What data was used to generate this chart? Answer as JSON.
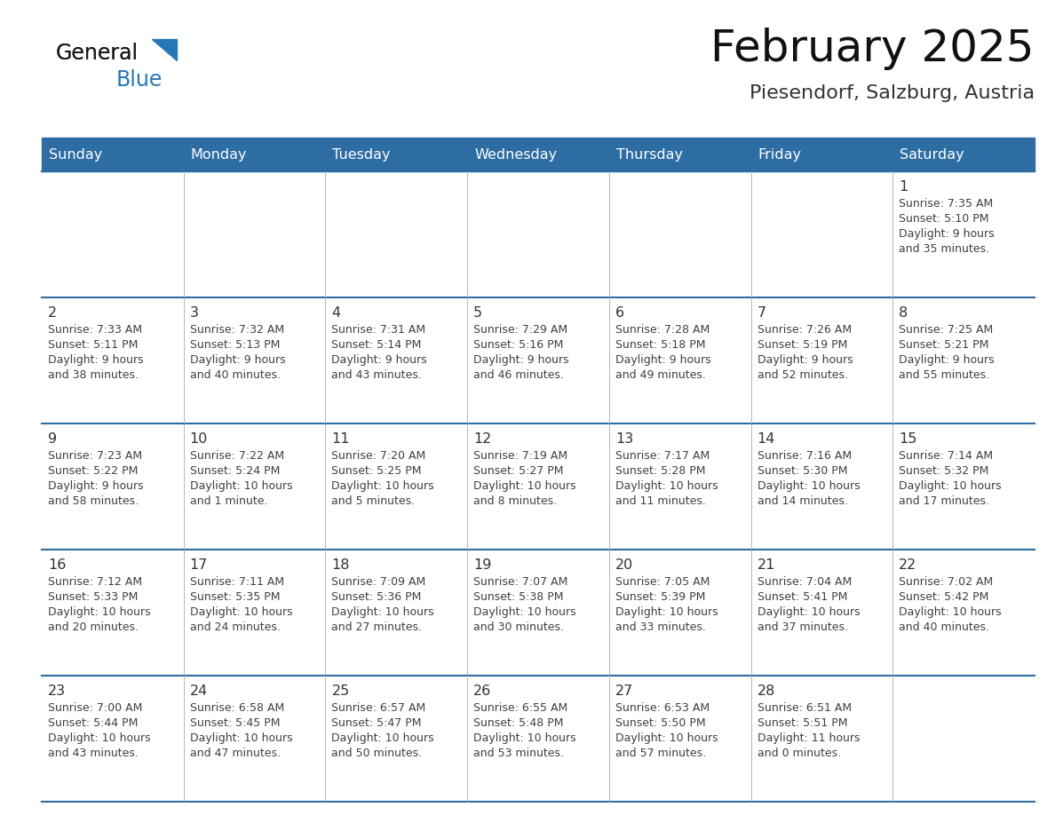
{
  "title": "February 2025",
  "subtitle": "Piesendorf, Salzburg, Austria",
  "days_of_week": [
    "Sunday",
    "Monday",
    "Tuesday",
    "Wednesday",
    "Thursday",
    "Friday",
    "Saturday"
  ],
  "header_bg": "#2E6DA4",
  "header_text": "#FFFFFF",
  "cell_bg": "#FFFFFF",
  "row_alt_bg": "#F2F2F2",
  "border_color": "#2E6DA4",
  "text_color": "#404040",
  "day_num_color": "#333333",
  "title_color": "#111111",
  "subtitle_color": "#333333",
  "logo_color_general": "#1a1a1a",
  "logo_color_blue": "#2777B8",
  "calendar_data": [
    [
      null,
      null,
      null,
      null,
      null,
      null,
      {
        "day": "1",
        "sunrise": "7:35 AM",
        "sunset": "5:10 PM",
        "daylight": "9 hours",
        "daylight2": "and 35 minutes."
      }
    ],
    [
      {
        "day": "2",
        "sunrise": "7:33 AM",
        "sunset": "5:11 PM",
        "daylight": "9 hours",
        "daylight2": "and 38 minutes."
      },
      {
        "day": "3",
        "sunrise": "7:32 AM",
        "sunset": "5:13 PM",
        "daylight": "9 hours",
        "daylight2": "and 40 minutes."
      },
      {
        "day": "4",
        "sunrise": "7:31 AM",
        "sunset": "5:14 PM",
        "daylight": "9 hours",
        "daylight2": "and 43 minutes."
      },
      {
        "day": "5",
        "sunrise": "7:29 AM",
        "sunset": "5:16 PM",
        "daylight": "9 hours",
        "daylight2": "and 46 minutes."
      },
      {
        "day": "6",
        "sunrise": "7:28 AM",
        "sunset": "5:18 PM",
        "daylight": "9 hours",
        "daylight2": "and 49 minutes."
      },
      {
        "day": "7",
        "sunrise": "7:26 AM",
        "sunset": "5:19 PM",
        "daylight": "9 hours",
        "daylight2": "and 52 minutes."
      },
      {
        "day": "8",
        "sunrise": "7:25 AM",
        "sunset": "5:21 PM",
        "daylight": "9 hours",
        "daylight2": "and 55 minutes."
      }
    ],
    [
      {
        "day": "9",
        "sunrise": "7:23 AM",
        "sunset": "5:22 PM",
        "daylight": "9 hours",
        "daylight2": "and 58 minutes."
      },
      {
        "day": "10",
        "sunrise": "7:22 AM",
        "sunset": "5:24 PM",
        "daylight": "10 hours",
        "daylight2": "and 1 minute."
      },
      {
        "day": "11",
        "sunrise": "7:20 AM",
        "sunset": "5:25 PM",
        "daylight": "10 hours",
        "daylight2": "and 5 minutes."
      },
      {
        "day": "12",
        "sunrise": "7:19 AM",
        "sunset": "5:27 PM",
        "daylight": "10 hours",
        "daylight2": "and 8 minutes."
      },
      {
        "day": "13",
        "sunrise": "7:17 AM",
        "sunset": "5:28 PM",
        "daylight": "10 hours",
        "daylight2": "and 11 minutes."
      },
      {
        "day": "14",
        "sunrise": "7:16 AM",
        "sunset": "5:30 PM",
        "daylight": "10 hours",
        "daylight2": "and 14 minutes."
      },
      {
        "day": "15",
        "sunrise": "7:14 AM",
        "sunset": "5:32 PM",
        "daylight": "10 hours",
        "daylight2": "and 17 minutes."
      }
    ],
    [
      {
        "day": "16",
        "sunrise": "7:12 AM",
        "sunset": "5:33 PM",
        "daylight": "10 hours",
        "daylight2": "and 20 minutes."
      },
      {
        "day": "17",
        "sunrise": "7:11 AM",
        "sunset": "5:35 PM",
        "daylight": "10 hours",
        "daylight2": "and 24 minutes."
      },
      {
        "day": "18",
        "sunrise": "7:09 AM",
        "sunset": "5:36 PM",
        "daylight": "10 hours",
        "daylight2": "and 27 minutes."
      },
      {
        "day": "19",
        "sunrise": "7:07 AM",
        "sunset": "5:38 PM",
        "daylight": "10 hours",
        "daylight2": "and 30 minutes."
      },
      {
        "day": "20",
        "sunrise": "7:05 AM",
        "sunset": "5:39 PM",
        "daylight": "10 hours",
        "daylight2": "and 33 minutes."
      },
      {
        "day": "21",
        "sunrise": "7:04 AM",
        "sunset": "5:41 PM",
        "daylight": "10 hours",
        "daylight2": "and 37 minutes."
      },
      {
        "day": "22",
        "sunrise": "7:02 AM",
        "sunset": "5:42 PM",
        "daylight": "10 hours",
        "daylight2": "and 40 minutes."
      }
    ],
    [
      {
        "day": "23",
        "sunrise": "7:00 AM",
        "sunset": "5:44 PM",
        "daylight": "10 hours",
        "daylight2": "and 43 minutes."
      },
      {
        "day": "24",
        "sunrise": "6:58 AM",
        "sunset": "5:45 PM",
        "daylight": "10 hours",
        "daylight2": "and 47 minutes."
      },
      {
        "day": "25",
        "sunrise": "6:57 AM",
        "sunset": "5:47 PM",
        "daylight": "10 hours",
        "daylight2": "and 50 minutes."
      },
      {
        "day": "26",
        "sunrise": "6:55 AM",
        "sunset": "5:48 PM",
        "daylight": "10 hours",
        "daylight2": "and 53 minutes."
      },
      {
        "day": "27",
        "sunrise": "6:53 AM",
        "sunset": "5:50 PM",
        "daylight": "10 hours",
        "daylight2": "and 57 minutes."
      },
      {
        "day": "28",
        "sunrise": "6:51 AM",
        "sunset": "5:51 PM",
        "daylight": "11 hours",
        "daylight2": "and 0 minutes."
      },
      null
    ]
  ]
}
